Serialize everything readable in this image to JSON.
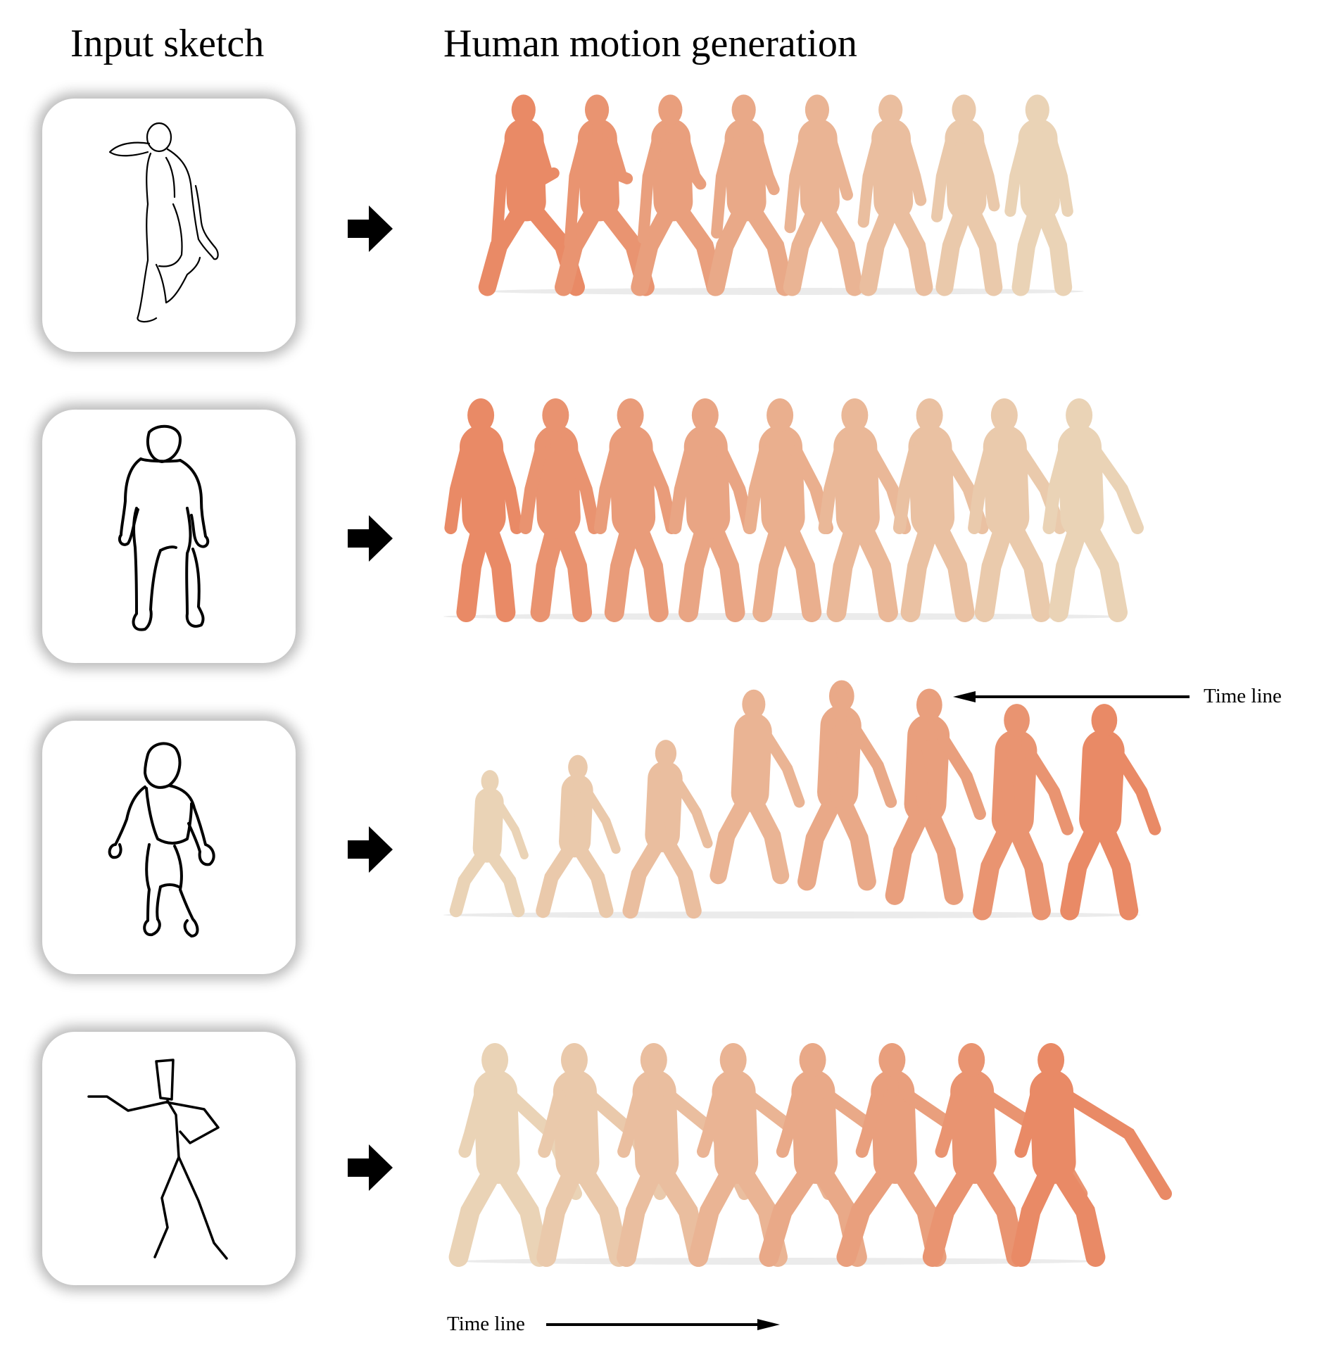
{
  "headings": {
    "left": "Input sketch",
    "right": "Human motion generation"
  },
  "timeline_labels": {
    "row2": "Time line",
    "row4": "Time line"
  },
  "colors": {
    "figure_light": "#ead3b6",
    "figure_dark": "#e98a66",
    "sketch_stroke": "#000000",
    "card_background": "#ffffff"
  },
  "rows": [
    {
      "frames": 8,
      "light_to_dark_direction": "right-to-left",
      "sketch_style": "outline"
    },
    {
      "frames": 9,
      "light_to_dark_direction": "right-to-left",
      "sketch_style": "bold-outline"
    },
    {
      "frames": 8,
      "light_to_dark_direction": "left-to-right",
      "sketch_style": "bold-outline"
    },
    {
      "frames": 8,
      "light_to_dark_direction": "left-to-right",
      "sketch_style": "stick-figure"
    }
  ]
}
